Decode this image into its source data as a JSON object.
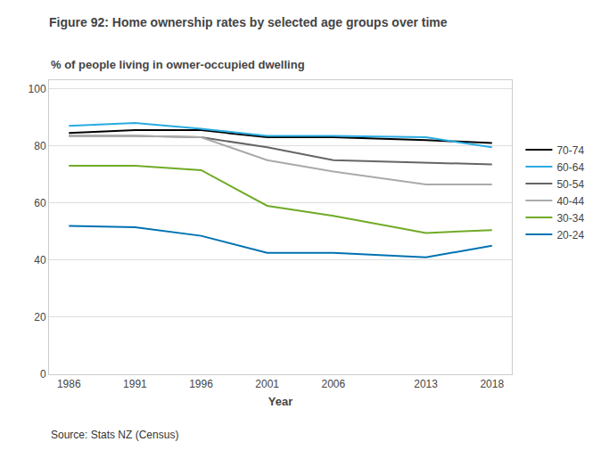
{
  "chart_data": {
    "type": "line",
    "title": "Figure 92: Home ownership rates by selected age groups over time",
    "ylabel": "% of people living in owner-occupied dwelling",
    "xlabel": "Year",
    "annotations": [
      "Source: Stats NZ (Census)"
    ],
    "x": [
      1986,
      1991,
      1996,
      2001,
      2006,
      2013,
      2018
    ],
    "series": [
      {
        "name": "70-74",
        "color": "#000000",
        "values": [
          84.5,
          85.5,
          85.5,
          83.0,
          83.0,
          82.0,
          81.0
        ]
      },
      {
        "name": "60-64",
        "color": "#29ABE2",
        "values": [
          87.0,
          88.0,
          86.0,
          83.5,
          83.5,
          83.0,
          79.5
        ]
      },
      {
        "name": "50-54",
        "color": "#666666",
        "values": [
          83.5,
          83.5,
          83.0,
          79.5,
          75.0,
          74.0,
          73.5
        ]
      },
      {
        "name": "40-44",
        "color": "#AAAAAA",
        "values": [
          83.5,
          83.5,
          83.0,
          75.0,
          71.0,
          66.5,
          66.5
        ]
      },
      {
        "name": "30-34",
        "color": "#70AB26",
        "values": [
          73.0,
          73.0,
          71.5,
          59.0,
          55.5,
          49.5,
          50.5
        ]
      },
      {
        "name": "20-24",
        "color": "#0072B2",
        "values": [
          52.0,
          51.5,
          48.5,
          42.5,
          42.5,
          41.0,
          45.0
        ]
      }
    ],
    "xlim": [
      1984.5,
      2019.5
    ],
    "xticks": [
      1986,
      1991,
      1996,
      2001,
      2006,
      2013,
      2018
    ],
    "ylim": [
      0,
      103
    ],
    "yticks": [
      0,
      20,
      40,
      60,
      80,
      100
    ],
    "grid": true,
    "legend": "right"
  }
}
